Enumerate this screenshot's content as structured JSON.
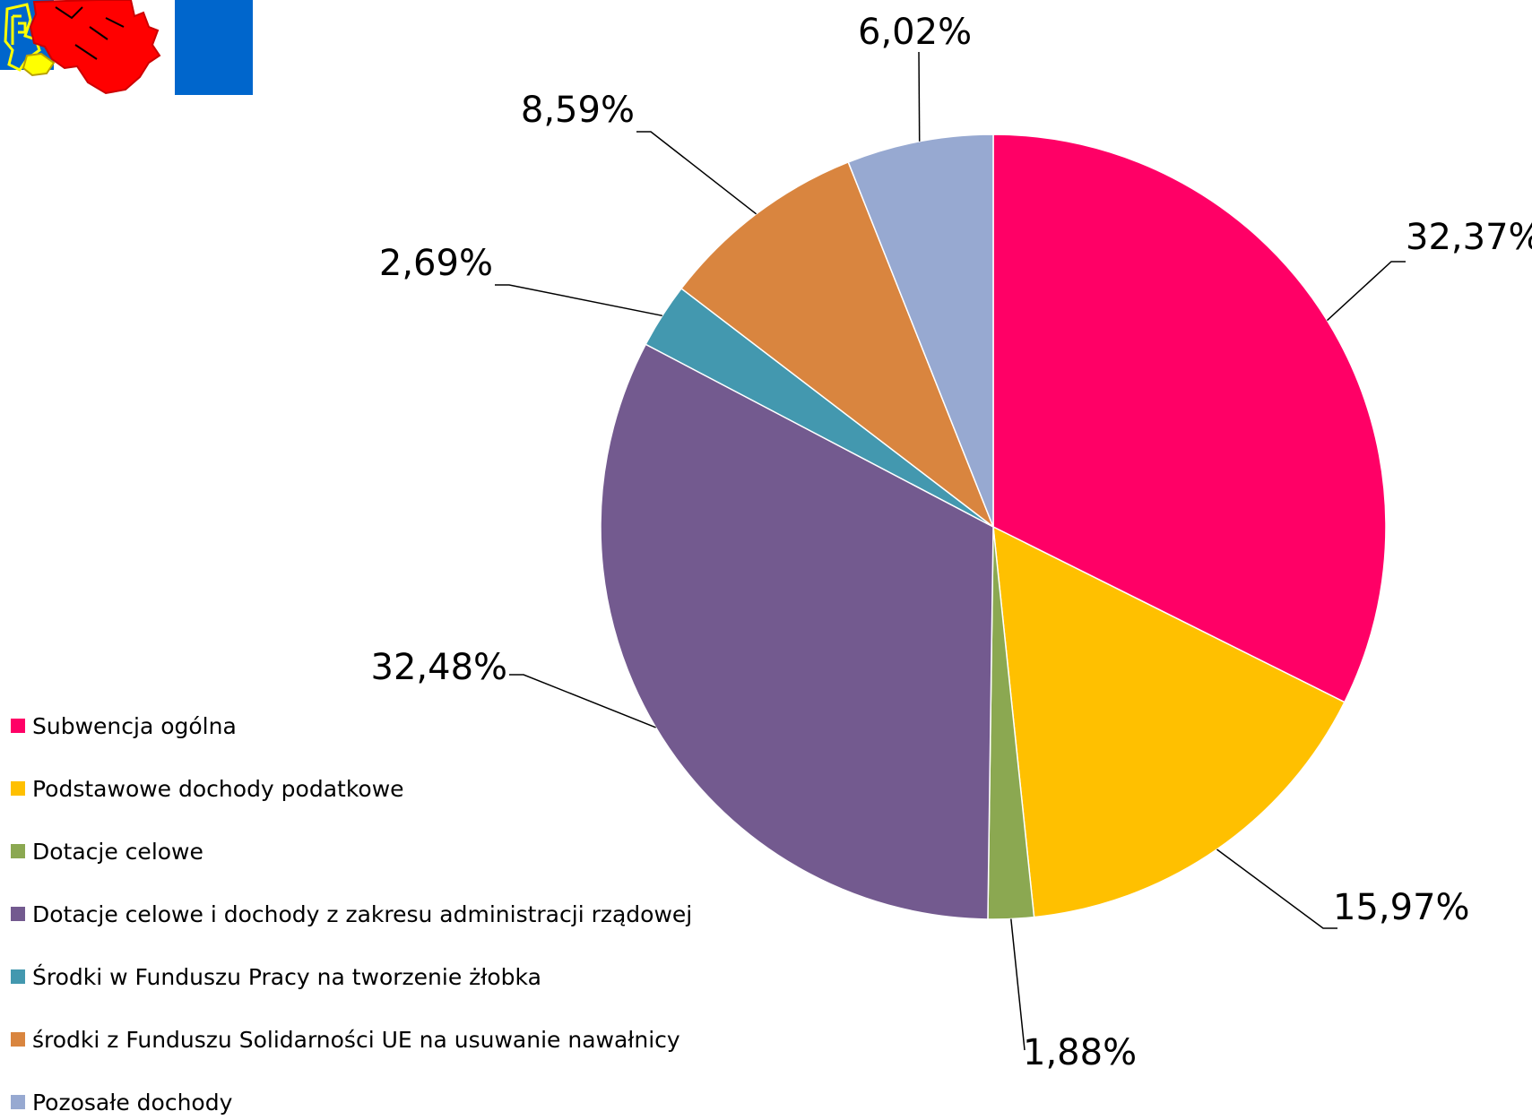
{
  "chart_data": {
    "type": "pie",
    "title": "",
    "slices": [
      {
        "name": "Subwencja ogólna",
        "value": 32.37,
        "label": "32,37%",
        "color": "#FF0066"
      },
      {
        "name": "Podstawowe dochody podatkowe",
        "value": 15.97,
        "label": "15,97%",
        "color": "#FFC000"
      },
      {
        "name": "Dotacje celowe",
        "value": 1.88,
        "label": "1,88%",
        "color": "#8BA851"
      },
      {
        "name": "Dotacje celowe i dochody z zakresu administracji rządowej",
        "value": 32.48,
        "label": "32,48%",
        "color": "#735A8F"
      },
      {
        "name": "Środki w Funduszu Pracy na tworzenie żłobka",
        "value": 2.69,
        "label": "2,69%",
        "color": "#4398AF"
      },
      {
        "name": "środki z Funduszu Solidarności UE na usuwanie nawałnicy",
        "value": 8.59,
        "label": "8,59%",
        "color": "#D9853F"
      },
      {
        "name": "Pozosałe dochody",
        "value": 6.02,
        "label": "6,02%",
        "color": "#97A9D1"
      }
    ],
    "legend_position": "bottom-left",
    "start_angle": "12 o'clock",
    "direction": "clockwise"
  },
  "logo": {
    "icon": "griffin-coat-of-arms-icon",
    "colors": {
      "blue": "#0066CC",
      "red": "#FF0000",
      "yellow": "#FFFF00"
    }
  }
}
